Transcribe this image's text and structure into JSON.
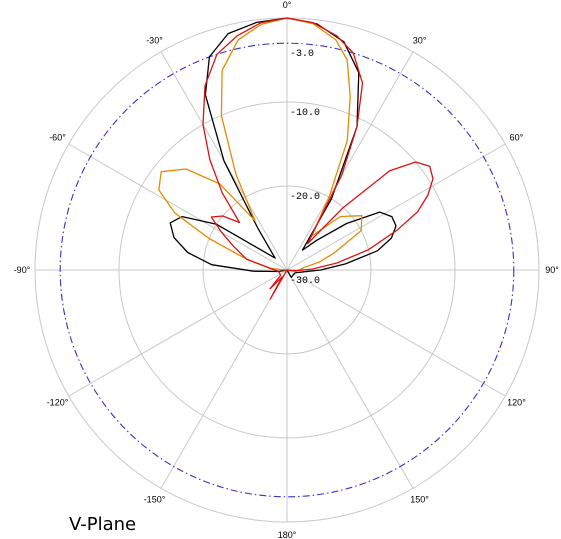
{
  "chart_data": {
    "type": "polar-line",
    "caption": "V-Plane",
    "angle_labels": [
      "0°",
      "30°",
      "60°",
      "90°",
      "120°",
      "150°",
      "180°",
      "-150°",
      "-120°",
      "-90°",
      "-60°",
      "-30°"
    ],
    "angle_values_deg": [
      0,
      30,
      60,
      90,
      120,
      150,
      180,
      -150,
      -120,
      -90,
      -60,
      -30
    ],
    "radial_labels": [
      "-3.0",
      "-10.0",
      "-20.0",
      "-30.0"
    ],
    "radial_values_db": [
      -3,
      -10,
      -20,
      -30
    ],
    "rlim_db": [
      -30,
      0
    ],
    "reference_circle": {
      "value_db": -3,
      "color": "#3333cc",
      "style": "dash-dot"
    },
    "grid_color": "#c8c8c8",
    "series": [
      {
        "color": "#000000",
        "points": [
          {
            "theta": -140,
            "r": -30
          },
          {
            "theta": -100,
            "r": -29
          },
          {
            "theta": -92,
            "r": -26
          },
          {
            "theta": -86,
            "r": -21
          },
          {
            "theta": -80,
            "r": -18
          },
          {
            "theta": -74,
            "r": -16
          },
          {
            "theta": -68,
            "r": -15
          },
          {
            "theta": -63,
            "r": -16
          },
          {
            "theta": -57,
            "r": -20
          },
          {
            "theta": -45,
            "r": -28
          },
          {
            "theta": -35,
            "r": -24
          },
          {
            "theta": -30,
            "r": -15
          },
          {
            "theta": -25,
            "r": -7
          },
          {
            "theta": -20,
            "r": -3
          },
          {
            "theta": -14,
            "r": -1
          },
          {
            "theta": -7,
            "r": -0.3
          },
          {
            "theta": 0,
            "r": 0
          },
          {
            "theta": 7,
            "r": -0.5
          },
          {
            "theta": 14,
            "r": -2
          },
          {
            "theta": 20,
            "r": -5
          },
          {
            "theta": 26,
            "r": -11
          },
          {
            "theta": 32,
            "r": -20
          },
          {
            "theta": 38,
            "r": -27
          },
          {
            "theta": 45,
            "r": -25
          },
          {
            "theta": 52,
            "r": -21
          },
          {
            "theta": 58,
            "r": -17
          },
          {
            "theta": 63,
            "r": -16
          },
          {
            "theta": 68,
            "r": -16
          },
          {
            "theta": 73,
            "r": -17
          },
          {
            "theta": 78,
            "r": -19
          },
          {
            "theta": 84,
            "r": -23
          },
          {
            "theta": 90,
            "r": -26
          },
          {
            "theta": 96,
            "r": -28
          },
          {
            "theta": 110,
            "r": -29
          },
          {
            "theta": 150,
            "r": -29
          },
          {
            "theta": 175,
            "r": -30
          }
        ]
      },
      {
        "color": "#e68a00",
        "points": [
          {
            "theta": -140,
            "r": -30
          },
          {
            "theta": -85,
            "r": -28
          },
          {
            "theta": -75,
            "r": -25
          },
          {
            "theta": -68,
            "r": -20
          },
          {
            "theta": -63,
            "r": -15
          },
          {
            "theta": -58,
            "r": -12
          },
          {
            "theta": -52,
            "r": -11
          },
          {
            "theta": -45,
            "r": -13
          },
          {
            "theta": -38,
            "r": -17
          },
          {
            "theta": -33,
            "r": -23
          },
          {
            "theta": -28,
            "r": -17
          },
          {
            "theta": -23,
            "r": -10
          },
          {
            "theta": -18,
            "r": -5
          },
          {
            "theta": -12,
            "r": -2
          },
          {
            "theta": -6,
            "r": -0.6
          },
          {
            "theta": 0,
            "r": 0
          },
          {
            "theta": 6,
            "r": -0.5
          },
          {
            "theta": 12,
            "r": -2
          },
          {
            "theta": 16,
            "r": -4
          },
          {
            "theta": 20,
            "r": -8
          },
          {
            "theta": 25,
            "r": -13
          },
          {
            "theta": 30,
            "r": -20
          },
          {
            "theta": 36,
            "r": -25
          },
          {
            "theta": 45,
            "r": -21
          },
          {
            "theta": 54,
            "r": -19
          },
          {
            "theta": 62,
            "r": -20
          },
          {
            "theta": 70,
            "r": -24
          },
          {
            "theta": 76,
            "r": -26
          },
          {
            "theta": 82,
            "r": -28
          },
          {
            "theta": 90,
            "r": -28.5
          },
          {
            "theta": 100,
            "r": -29
          },
          {
            "theta": 130,
            "r": -30
          }
        ]
      },
      {
        "color": "#dd1111",
        "points": [
          {
            "theta": -160,
            "r": -30
          },
          {
            "theta": -150,
            "r": -26
          },
          {
            "theta": -145,
            "r": -29
          },
          {
            "theta": -138,
            "r": -27
          },
          {
            "theta": -130,
            "r": -29
          },
          {
            "theta": -100,
            "r": -29
          },
          {
            "theta": -75,
            "r": -25
          },
          {
            "theta": -66,
            "r": -23
          },
          {
            "theta": -60,
            "r": -21
          },
          {
            "theta": -55,
            "r": -19
          },
          {
            "theta": -50,
            "r": -20
          },
          {
            "theta": -45,
            "r": -22
          },
          {
            "theta": -40,
            "r": -18
          },
          {
            "theta": -35,
            "r": -14
          },
          {
            "theta": -30,
            "r": -10
          },
          {
            "theta": -24,
            "r": -6
          },
          {
            "theta": -18,
            "r": -3
          },
          {
            "theta": -12,
            "r": -1.5
          },
          {
            "theta": -6,
            "r": -0.4
          },
          {
            "theta": 0,
            "r": 0
          },
          {
            "theta": 6,
            "r": -0.4
          },
          {
            "theta": 12,
            "r": -1.5
          },
          {
            "theta": 17,
            "r": -3
          },
          {
            "theta": 22,
            "r": -6
          },
          {
            "theta": 26,
            "r": -11
          },
          {
            "theta": 30,
            "r": -17
          },
          {
            "theta": 34,
            "r": -24
          },
          {
            "theta": 38,
            "r": -26
          },
          {
            "theta": 42,
            "r": -20
          },
          {
            "theta": 46,
            "r": -13
          },
          {
            "theta": 50,
            "r": -10
          },
          {
            "theta": 54,
            "r": -9
          },
          {
            "theta": 58,
            "r": -9.5
          },
          {
            "theta": 62,
            "r": -11
          },
          {
            "theta": 66,
            "r": -13
          },
          {
            "theta": 70,
            "r": -16
          },
          {
            "theta": 76,
            "r": -20
          },
          {
            "theta": 82,
            "r": -24
          },
          {
            "theta": 88,
            "r": -27
          },
          {
            "theta": 95,
            "r": -29
          },
          {
            "theta": 110,
            "r": -30
          }
        ]
      }
    ]
  }
}
